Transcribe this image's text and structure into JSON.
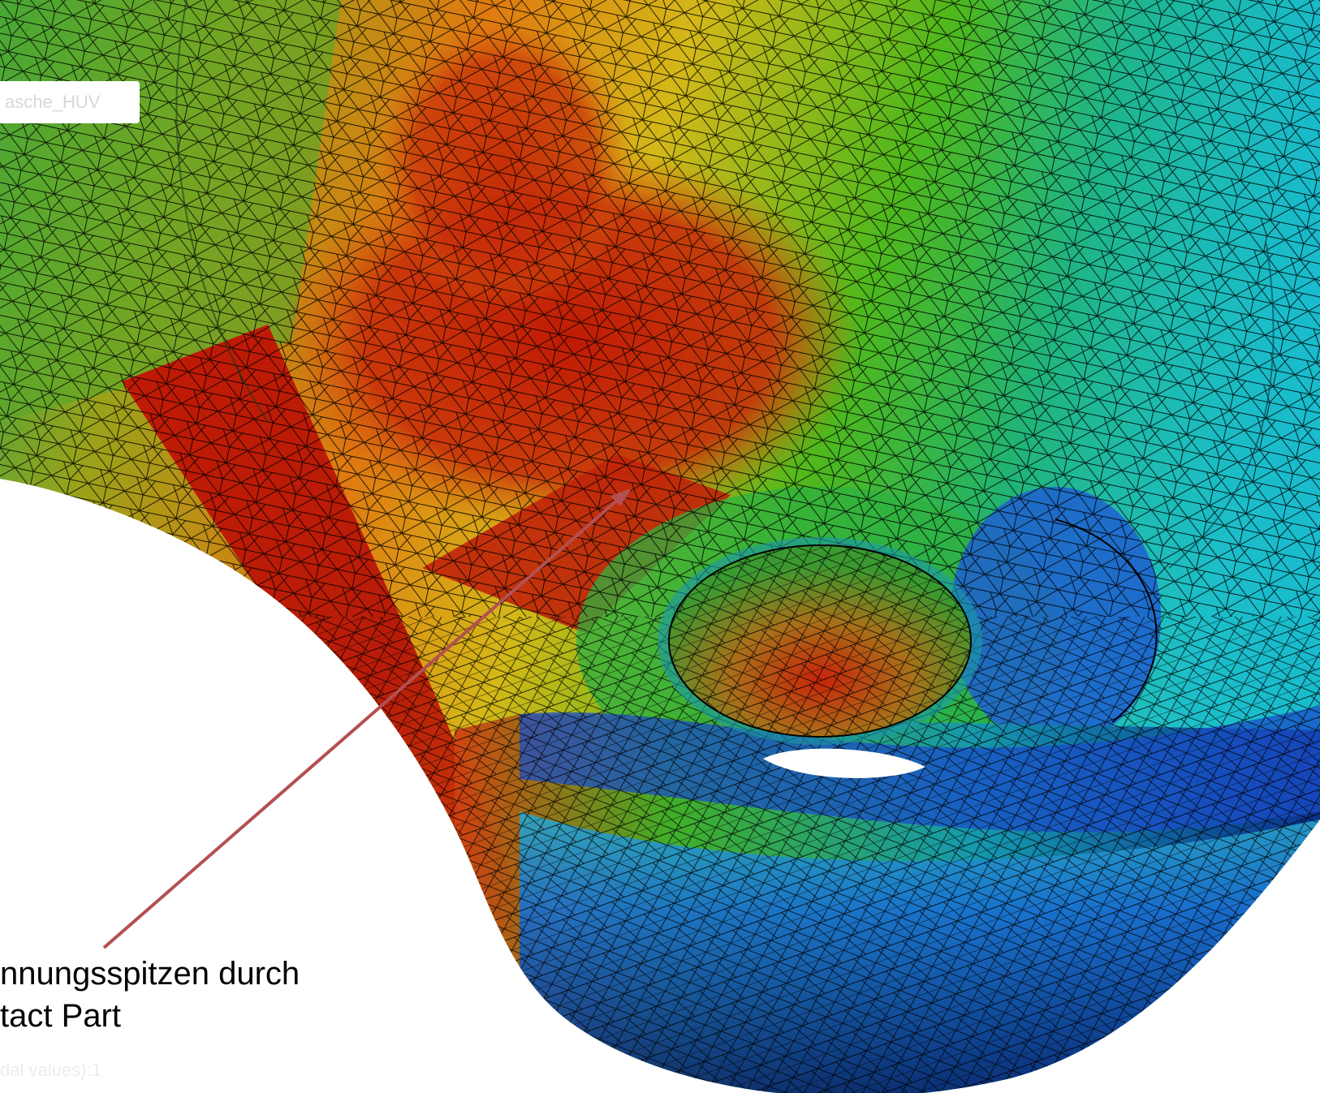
{
  "viewport_label": "asche_HUV",
  "annotation": {
    "line1": "nnungsspitzen durch",
    "line2": "tact Part"
  },
  "footer_faint": "dal values):1",
  "colors": {
    "stress_high": "#c21a05",
    "stress_mid_high": "#e06a10",
    "stress_mid": "#d9c41a",
    "stress_low_mid": "#31a81e",
    "stress_low": "#13c4c9",
    "stress_min": "#0a2a9a",
    "arrow": "#b45050",
    "mesh": "#000000"
  },
  "icons": {
    "mesh": "fem-mesh-icon",
    "arrow": "callout-arrow-icon"
  }
}
